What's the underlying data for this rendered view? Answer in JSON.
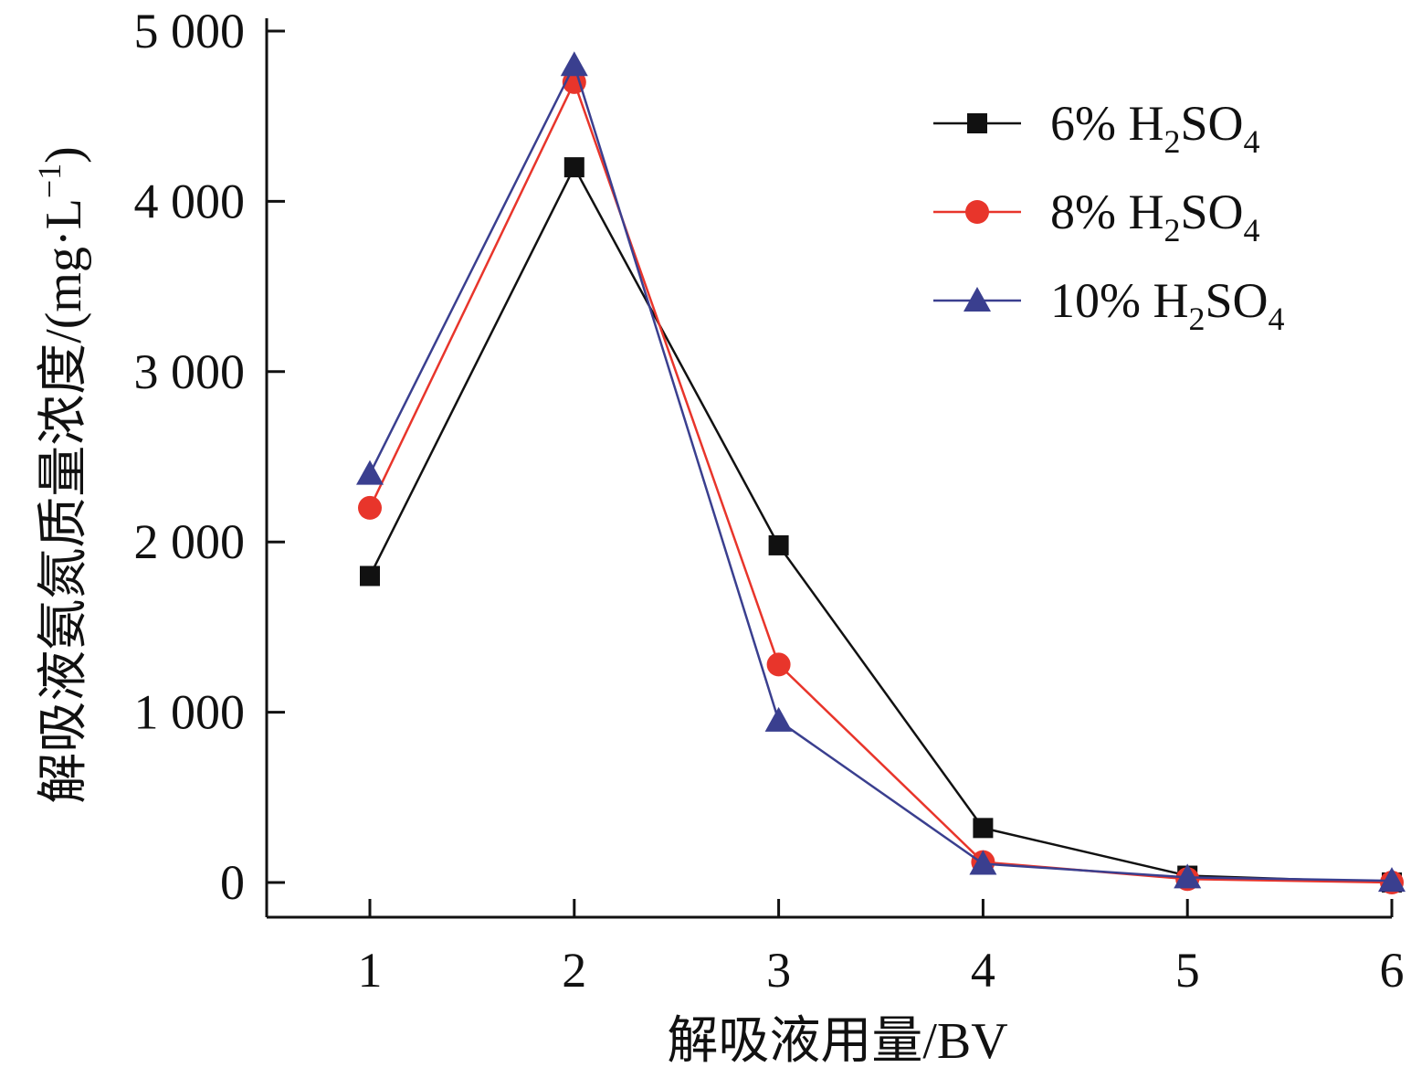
{
  "chart_data": {
    "type": "line",
    "x": [
      1,
      2,
      3,
      4,
      5,
      6
    ],
    "xlabel": "解吸液用量/BV",
    "ylabel_main": "解吸液氨氮质量浓度/(mg·L",
    "ylabel_sup": "−1",
    "ylabel_close": ")",
    "xlim": [
      0.5,
      6
    ],
    "ylim": [
      -200,
      5000
    ],
    "x_ticks": [
      1,
      2,
      3,
      4,
      5,
      6
    ],
    "y_ticks": [
      0,
      1000,
      2000,
      3000,
      4000,
      5000
    ],
    "y_tick_labels": [
      "0",
      "1 000",
      "2 000",
      "3 000",
      "4 000",
      "5 000"
    ],
    "legend_position": "top-right",
    "grid": false,
    "series": [
      {
        "name": "6% H2SO4",
        "name_prefix": "6% H",
        "name_sub1": "2",
        "name_mid": "SO",
        "name_sub2": "4",
        "color": "#111111",
        "marker": "square",
        "values": [
          1800,
          4200,
          1980,
          320,
          40,
          0
        ]
      },
      {
        "name": "8% H2SO4",
        "name_prefix": "8% H",
        "name_sub1": "2",
        "name_mid": "SO",
        "name_sub2": "4",
        "color": "#e8352b",
        "marker": "circle",
        "values": [
          2200,
          4700,
          1280,
          120,
          20,
          0
        ]
      },
      {
        "name": "10% H2SO4",
        "name_prefix": "10% H",
        "name_sub1": "2",
        "name_mid": "SO",
        "name_sub2": "4",
        "color": "#3a3f8f",
        "marker": "triangle",
        "values": [
          2400,
          4800,
          950,
          110,
          30,
          10
        ]
      }
    ]
  }
}
